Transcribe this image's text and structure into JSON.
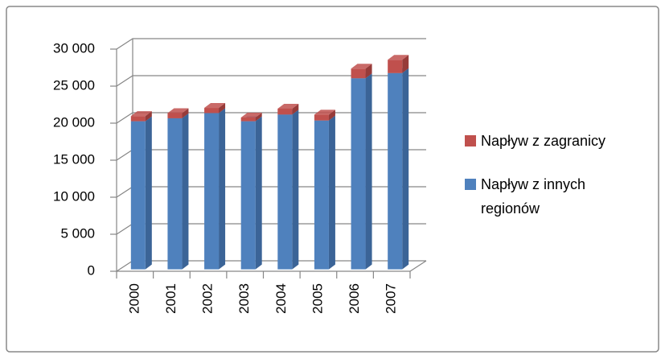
{
  "chart_data": {
    "type": "bar3d_stacked",
    "categories": [
      "2000",
      "2001",
      "2002",
      "2003",
      "2004",
      "2005",
      "2006",
      "2007"
    ],
    "series": [
      {
        "name": "Napływ z innych regionów",
        "color": "#4f81bd",
        "side": "#3b6497",
        "values": [
          20000,
          20400,
          21100,
          20000,
          20900,
          20100,
          25800,
          26500
        ]
      },
      {
        "name": "Napływ z zagranicy",
        "color": "#c0504d",
        "side": "#973b39",
        "values": [
          700,
          700,
          700,
          500,
          800,
          800,
          1300,
          1800
        ]
      }
    ],
    "ylim": [
      0,
      30000
    ],
    "yticks": [
      0,
      {
        "value": 5000,
        "label": "5 000"
      },
      {
        "value": 10000,
        "label": "10 000"
      },
      {
        "value": 15000,
        "label": "15 000"
      },
      {
        "value": 20000,
        "label": "20 000"
      },
      {
        "value": 25000,
        "label": "25 000"
      },
      {
        "value": 30000,
        "label": "30 000"
      }
    ],
    "grid": true,
    "legend": "right"
  }
}
